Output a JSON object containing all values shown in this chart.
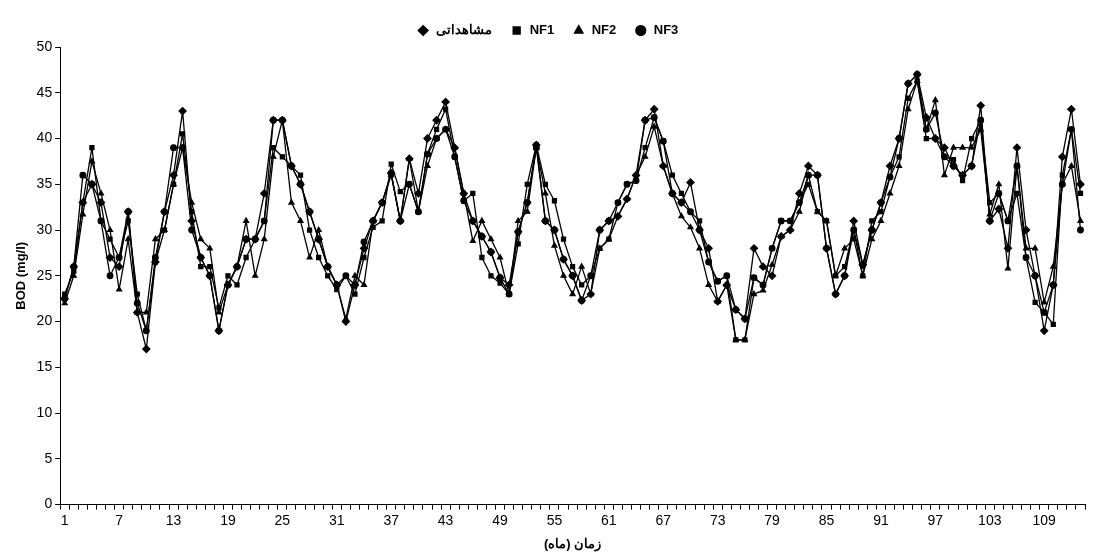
{
  "chart_data": {
    "type": "line",
    "xlabel": "زمان (ماه)",
    "ylabel": "BOD (mg/l)",
    "categories": [
      "1",
      null,
      null,
      null,
      null,
      null,
      "7",
      null,
      null,
      null,
      null,
      null,
      "13",
      null,
      null,
      null,
      null,
      null,
      "19",
      null,
      null,
      null,
      null,
      null,
      "25",
      null,
      null,
      null,
      null,
      null,
      "31",
      null,
      null,
      null,
      null,
      null,
      "37",
      null,
      null,
      null,
      null,
      null,
      "43",
      null,
      null,
      null,
      null,
      null,
      "49",
      null,
      null,
      null,
      null,
      null,
      "55",
      null,
      null,
      null,
      null,
      null,
      "61",
      null,
      null,
      null,
      null,
      null,
      "67",
      null,
      null,
      null,
      null,
      null,
      "73",
      null,
      null,
      null,
      null,
      null,
      "79",
      null,
      null,
      null,
      null,
      null,
      "85",
      null,
      null,
      null,
      null,
      null,
      "91",
      null,
      null,
      null,
      null,
      null,
      "97",
      null,
      null,
      null,
      null,
      null,
      "103",
      null,
      null,
      null,
      null,
      null,
      "109",
      null,
      null,
      null,
      null
    ],
    "ylim": [
      0,
      50
    ],
    "yticks": [
      0,
      5,
      10,
      15,
      20,
      25,
      30,
      35,
      40,
      45,
      50
    ],
    "grid": false,
    "legend": "top",
    "line_style": "solid",
    "series": [
      {
        "name": "مشاهداتی",
        "color": "#000000",
        "marker": "diamond",
        "values": [
          22.5,
          26,
          33,
          35,
          33,
          27,
          26,
          32,
          21,
          17,
          26.5,
          32,
          36,
          43,
          31,
          27,
          25,
          19,
          24,
          26,
          29,
          29,
          34,
          42,
          42,
          37,
          35,
          32,
          29,
          26,
          24,
          20,
          24,
          28,
          31,
          33,
          36.2,
          31,
          37.8,
          34,
          40,
          42,
          44,
          39,
          34,
          31,
          29.3,
          27.6,
          24.8,
          24,
          29.8,
          33,
          39.3,
          31,
          30,
          26.8,
          25,
          22.3,
          23,
          30,
          31,
          31.5,
          33.4,
          36,
          42,
          43.2,
          37,
          34,
          33,
          35.2,
          30,
          28,
          22.2,
          24,
          21.3,
          20.3,
          28,
          26,
          25,
          29.3,
          30,
          34,
          37,
          36,
          28,
          23,
          25,
          31,
          26.2,
          30,
          33,
          37,
          40,
          46,
          47,
          42.3,
          40,
          39,
          37,
          36,
          37,
          43.6,
          31,
          32.3,
          28,
          39,
          30,
          25,
          19,
          24,
          38,
          43.2,
          35
        ]
      },
      {
        "name": "NF1",
        "color": "#000000",
        "marker": "square",
        "values": [
          23,
          25.5,
          33,
          39,
          31,
          29,
          27,
          31,
          23,
          19,
          26.5,
          30,
          35,
          40.5,
          32,
          26,
          26,
          21.5,
          25,
          24,
          27,
          29,
          31,
          39,
          38,
          37,
          36,
          30,
          27,
          25,
          23.5,
          25,
          23,
          27,
          30.3,
          31,
          37.2,
          34.2,
          35,
          32,
          38.3,
          41,
          43.2,
          38,
          33.2,
          34,
          27,
          25,
          24.2,
          23,
          28.5,
          35,
          39.3,
          35,
          33.2,
          29,
          26,
          24,
          25,
          28,
          29,
          33,
          35,
          35.4,
          39,
          42.3,
          39.7,
          36,
          34,
          32,
          31,
          26.5,
          24.4,
          25,
          18,
          18,
          24.8,
          24,
          28,
          31,
          31,
          33,
          35,
          32,
          31,
          25,
          26,
          30,
          25,
          31,
          32,
          35.8,
          38,
          44.4,
          46.3,
          40,
          40,
          38,
          37.7,
          35.4,
          40,
          42,
          33,
          34,
          31,
          34,
          27,
          22.1,
          21,
          19.7,
          36,
          41,
          34
        ]
      },
      {
        "name": "NF2",
        "color": "#000000",
        "marker": "triangle",
        "values": [
          22,
          25,
          31.7,
          37.5,
          34,
          30,
          23.5,
          29,
          21,
          21,
          29,
          30,
          35,
          39,
          33,
          29,
          28,
          21,
          24,
          26,
          31,
          25,
          29,
          38,
          42,
          33,
          31,
          27,
          30,
          26,
          24,
          20.3,
          25,
          24,
          31,
          33,
          36,
          31,
          37.8,
          32,
          37,
          40,
          41,
          39,
          34,
          28.8,
          31,
          29,
          27,
          23,
          31,
          32,
          39,
          34,
          28.3,
          25,
          23,
          26,
          23,
          28,
          29,
          31.5,
          33.4,
          36,
          38,
          41.3,
          37,
          34,
          31.5,
          30.3,
          28,
          24,
          22.2,
          24,
          18,
          18,
          23,
          23.4,
          26.2,
          29.3,
          30,
          32,
          36,
          32,
          31,
          25,
          28,
          29,
          25,
          29,
          31,
          34,
          37,
          43.2,
          46.3,
          41,
          44.2,
          36,
          39,
          39,
          39,
          41,
          31.7,
          35,
          25.8,
          37,
          28,
          28,
          22.1,
          26,
          35,
          37,
          31
        ]
      },
      {
        "name": "NF3",
        "color": "#000000",
        "marker": "circle",
        "values": [
          22.5,
          26,
          36,
          35,
          31,
          25,
          27,
          32,
          22,
          19,
          27,
          32,
          39,
          39,
          30,
          27,
          25,
          19,
          24,
          26,
          29,
          29,
          31,
          42,
          42,
          37,
          35,
          32,
          29,
          26,
          24,
          25,
          24,
          28.7,
          31,
          33,
          36.2,
          31,
          35,
          32,
          38.3,
          40,
          41,
          38,
          33.2,
          31,
          29.3,
          27.6,
          24.8,
          23,
          29.8,
          33,
          39,
          31,
          30,
          26.8,
          25,
          22.3,
          25,
          30,
          31,
          33,
          35,
          35.4,
          42,
          42.3,
          39.7,
          34,
          33,
          32,
          30,
          26.5,
          24.4,
          25,
          21.3,
          20.3,
          24.8,
          24,
          28,
          31,
          31,
          33,
          36,
          36,
          28,
          23,
          25,
          30,
          26.2,
          30,
          33,
          35.8,
          40,
          46,
          47,
          41,
          42.8,
          38,
          37,
          36,
          37,
          42,
          31,
          34,
          31,
          37,
          27,
          25,
          21,
          24,
          35,
          41,
          30
        ]
      }
    ]
  }
}
